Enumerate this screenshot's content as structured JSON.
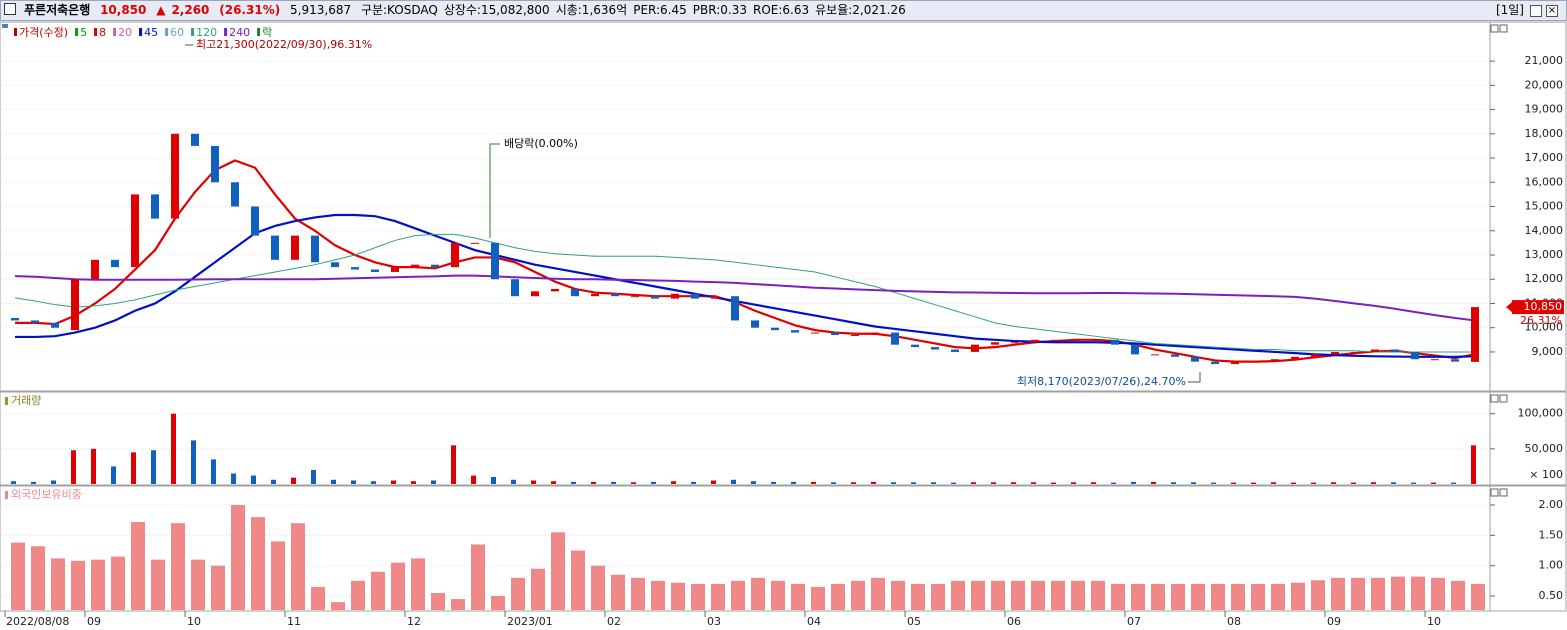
{
  "header": {
    "name": "푸른저축은행",
    "price": "10,850",
    "change_sign": "▲",
    "change": "2,260",
    "change_pct": "(26.31%)",
    "volume": "5,913,687",
    "items": [
      "구분:KOSDAQ",
      "상장수:15,082,800",
      "시총:1,636억",
      "PER:6.45",
      "PBR:0.33",
      "ROE:6.63",
      "유보율:2,021.26"
    ],
    "period": "[1일]"
  },
  "chart_data": [
    {
      "type": "candlestick",
      "price_name": "가격(수정)",
      "price_color": "#c00000",
      "ex_div_name": "락",
      "ex_div_color": "#208020",
      "up_color": "#e00000",
      "down_color": "#1060c0",
      "grid": true,
      "ylim": [
        7430,
        22530
      ],
      "yticks": [
        {
          "value": 21000,
          "label": "21,000"
        },
        {
          "value": 20000,
          "label": "20,000"
        },
        {
          "value": 19000,
          "label": "19,000"
        },
        {
          "value": 18000,
          "label": "18,000"
        },
        {
          "value": 17000,
          "label": "17,000"
        },
        {
          "value": 16000,
          "label": "16,000"
        },
        {
          "value": 15000,
          "label": "15,000"
        },
        {
          "value": 14000,
          "label": "14,000"
        },
        {
          "value": 13000,
          "label": "13,000"
        },
        {
          "value": 12000,
          "label": "12,000"
        },
        {
          "value": 11000,
          "label": "11,000"
        },
        {
          "value": 10000,
          "label": "10,000"
        },
        {
          "value": 9000,
          "label": "9,000"
        }
      ],
      "open": [
        10400,
        10300,
        10200,
        9900,
        12000,
        12800,
        12500,
        15500,
        14500,
        18000,
        17500,
        16000,
        15000,
        13800,
        12800,
        13800,
        12700,
        12500,
        12400,
        12300,
        12500,
        12600,
        12500,
        13500,
        13500,
        12000,
        11300,
        11500,
        11600,
        11300,
        11400,
        11300,
        11300,
        11200,
        11400,
        11200,
        11300,
        10300,
        10000,
        9900,
        9800,
        9800,
        9700,
        9700,
        9800,
        9300,
        9200,
        9100,
        9000,
        9300,
        9400,
        9400,
        9500,
        9500,
        9500,
        9500,
        9300,
        8900,
        8900,
        8800,
        8600,
        8500,
        8600,
        8600,
        8700,
        8800,
        8900,
        9000,
        9000,
        9100,
        9000,
        8700,
        8700,
        8590
      ],
      "close": [
        10300,
        10200,
        10000,
        12000,
        12800,
        12500,
        15500,
        14500,
        18000,
        17500,
        16000,
        15000,
        13800,
        12800,
        13800,
        12700,
        12500,
        12400,
        12300,
        12500,
        12600,
        12500,
        13500,
        13500,
        12000,
        11300,
        11500,
        11600,
        11300,
        11400,
        11300,
        11300,
        11200,
        11400,
        11200,
        11300,
        10300,
        10000,
        9900,
        9800,
        9800,
        9700,
        9700,
        9800,
        9300,
        9200,
        9100,
        9000,
        9300,
        9400,
        9400,
        9500,
        9500,
        9500,
        9500,
        9300,
        8900,
        8900,
        8800,
        8600,
        8500,
        8600,
        8600,
        8700,
        8800,
        8900,
        9000,
        9000,
        9100,
        9000,
        8700,
        8700,
        8600,
        10850
      ],
      "series": [
        {
          "name": "5",
          "color": "#00a000"
        },
        {
          "name": "8",
          "color": "#e00000",
          "line_width": 2.2,
          "values": [
            10200,
            10200,
            10150,
            10500,
            11000,
            11600,
            12400,
            13200,
            14500,
            15600,
            16500,
            16900,
            16600,
            15500,
            14500,
            14000,
            13400,
            13000,
            12700,
            12500,
            12500,
            12450,
            12700,
            12900,
            12900,
            12700,
            12300,
            11900,
            11600,
            11450,
            11400,
            11350,
            11300,
            11300,
            11300,
            11300,
            11050,
            10700,
            10400,
            10100,
            9900,
            9800,
            9750,
            9750,
            9650,
            9500,
            9350,
            9200,
            9150,
            9200,
            9300,
            9400,
            9450,
            9500,
            9500,
            9450,
            9300,
            9100,
            8950,
            8800,
            8650,
            8600,
            8600,
            8620,
            8680,
            8780,
            8870,
            8950,
            9020,
            9050,
            8950,
            8850,
            8750,
            8900
          ]
        },
        {
          "name": "20",
          "color": "#d060a0"
        },
        {
          "name": "45",
          "color": "#0010c8",
          "line_width": 2.2,
          "values": [
            9620,
            9620,
            9650,
            9800,
            10000,
            10300,
            10700,
            11000,
            11500,
            12100,
            12700,
            13300,
            13900,
            14200,
            14400,
            14550,
            14650,
            14650,
            14600,
            14400,
            14100,
            13800,
            13500,
            13200,
            13000,
            12800,
            12600,
            12450,
            12300,
            12150,
            12000,
            11850,
            11700,
            11550,
            11400,
            11250,
            11100,
            10950,
            10800,
            10650,
            10500,
            10350,
            10200,
            10050,
            9950,
            9850,
            9750,
            9650,
            9550,
            9500,
            9450,
            9420,
            9400,
            9400,
            9400,
            9380,
            9350,
            9300,
            9250,
            9200,
            9150,
            9100,
            9050,
            9000,
            8950,
            8900,
            8870,
            8840,
            8820,
            8810,
            8800,
            8800,
            8800,
            8820
          ]
        },
        {
          "name": "60",
          "color": "#70a0d0"
        },
        {
          "name": "120",
          "color": "#30a080",
          "line_width": 1,
          "values": [
            11230,
            11100,
            10950,
            10850,
            10900,
            11000,
            11150,
            11350,
            11550,
            11700,
            11850,
            12000,
            12150,
            12300,
            12450,
            12600,
            12800,
            13000,
            13300,
            13600,
            13800,
            13850,
            13850,
            13700,
            13500,
            13300,
            13150,
            13050,
            13000,
            12950,
            12950,
            12950,
            12950,
            12900,
            12850,
            12800,
            12700,
            12600,
            12500,
            12400,
            12300,
            12100,
            11900,
            11700,
            11450,
            11200,
            10950,
            10700,
            10450,
            10200,
            10050,
            9950,
            9850,
            9750,
            9650,
            9550,
            9450,
            9350,
            9300,
            9250,
            9200,
            9150,
            9100,
            9100,
            9050,
            9050,
            9050,
            9050,
            9000,
            9000,
            9000,
            9000,
            9000,
            9000
          ]
        },
        {
          "name": "240",
          "color": "#7a20c0",
          "line_width": 2,
          "values": [
            12130,
            12100,
            12050,
            12000,
            11980,
            11980,
            11980,
            11980,
            11980,
            11990,
            12000,
            12000,
            12000,
            12000,
            12000,
            12000,
            12020,
            12040,
            12060,
            12080,
            12100,
            12120,
            12150,
            12150,
            12120,
            12080,
            12050,
            12020,
            12000,
            12000,
            11980,
            11970,
            11950,
            11930,
            11900,
            11880,
            11850,
            11800,
            11750,
            11700,
            11650,
            11620,
            11580,
            11550,
            11520,
            11500,
            11480,
            11460,
            11450,
            11440,
            11430,
            11420,
            11420,
            11420,
            11430,
            11430,
            11420,
            11410,
            11400,
            11380,
            11360,
            11340,
            11320,
            11300,
            11270,
            11200,
            11100,
            11000,
            10900,
            10780,
            10650,
            10520,
            10400,
            10300
          ]
        }
      ],
      "annotations": [
        {
          "text": "최고21,300(2022/09/30),96.31%"
        },
        {
          "text": "배당락(0.00%)"
        },
        {
          "text": "최저8,170(2023/07/26),24.70%"
        }
      ],
      "last_price_label": "10,850",
      "last_change_label": "26.31%"
    },
    {
      "type": "bar",
      "title": "거래량",
      "grid": true,
      "ylim": [
        0,
        128000
      ],
      "yticks": [
        {
          "value": 100000,
          "label": "100,000"
        },
        {
          "value": 50000,
          "label": "50,000"
        }
      ],
      "unit_label": "× 100",
      "values": [
        4000,
        3000,
        5000,
        48000,
        50000,
        25000,
        45000,
        48000,
        100000,
        62000,
        35000,
        15000,
        12000,
        6000,
        9000,
        20000,
        6000,
        5000,
        4000,
        5000,
        4000,
        5000,
        55000,
        12000,
        10000,
        6000,
        5000,
        4000,
        3000,
        3000,
        3000,
        2500,
        3000,
        4000,
        3000,
        5000,
        6000,
        4000,
        3000,
        3000,
        3000,
        2500,
        2500,
        3000,
        2500,
        2500,
        2500,
        2000,
        2500,
        2500,
        2500,
        2500,
        2000,
        2500,
        2500,
        2000,
        3000,
        3000,
        2500,
        2500,
        2000,
        2000,
        2000,
        2500,
        2000,
        2000,
        2500,
        2000,
        2500,
        2500,
        2000,
        2000,
        2000,
        55000
      ]
    },
    {
      "type": "bar",
      "title": "외국인보유비중",
      "color": "#f08888",
      "grid": true,
      "ylim": [
        0.27,
        2.28
      ],
      "yticks": [
        {
          "value": 2,
          "label": "2.00"
        },
        {
          "value": 1.5,
          "label": "1.50"
        },
        {
          "value": 1,
          "label": "1.00"
        },
        {
          "value": 0.5,
          "label": "0.50"
        }
      ],
      "values": [
        1.38,
        1.32,
        1.12,
        1.08,
        1.1,
        1.15,
        1.72,
        1.1,
        1.7,
        1.1,
        1.0,
        2.0,
        1.8,
        1.4,
        1.7,
        0.65,
        0.4,
        0.75,
        0.9,
        1.05,
        1.12,
        0.55,
        0.45,
        1.35,
        0.5,
        0.8,
        0.95,
        1.55,
        1.25,
        1.0,
        0.85,
        0.8,
        0.75,
        0.72,
        0.7,
        0.7,
        0.75,
        0.8,
        0.75,
        0.7,
        0.65,
        0.7,
        0.75,
        0.8,
        0.75,
        0.7,
        0.7,
        0.75,
        0.75,
        0.75,
        0.75,
        0.75,
        0.75,
        0.75,
        0.75,
        0.7,
        0.7,
        0.7,
        0.7,
        0.7,
        0.7,
        0.7,
        0.7,
        0.7,
        0.72,
        0.76,
        0.8,
        0.8,
        0.8,
        0.82,
        0.82,
        0.8,
        0.75,
        0.7
      ],
      "categories": [
        "2022/08/08",
        null,
        null,
        null,
        "09",
        null,
        null,
        null,
        null,
        "10",
        null,
        null,
        null,
        null,
        "11",
        null,
        null,
        null,
        null,
        null,
        "12",
        null,
        null,
        null,
        null,
        "2023/01",
        null,
        null,
        null,
        null,
        "02",
        null,
        null,
        null,
        null,
        "03",
        null,
        null,
        null,
        null,
        "04",
        null,
        null,
        null,
        null,
        "05",
        null,
        null,
        null,
        null,
        "06",
        null,
        null,
        null,
        null,
        null,
        "07",
        null,
        null,
        null,
        null,
        "08",
        null,
        null,
        null,
        null,
        "09",
        null,
        null,
        null,
        null,
        "10",
        null,
        null
      ]
    }
  ]
}
